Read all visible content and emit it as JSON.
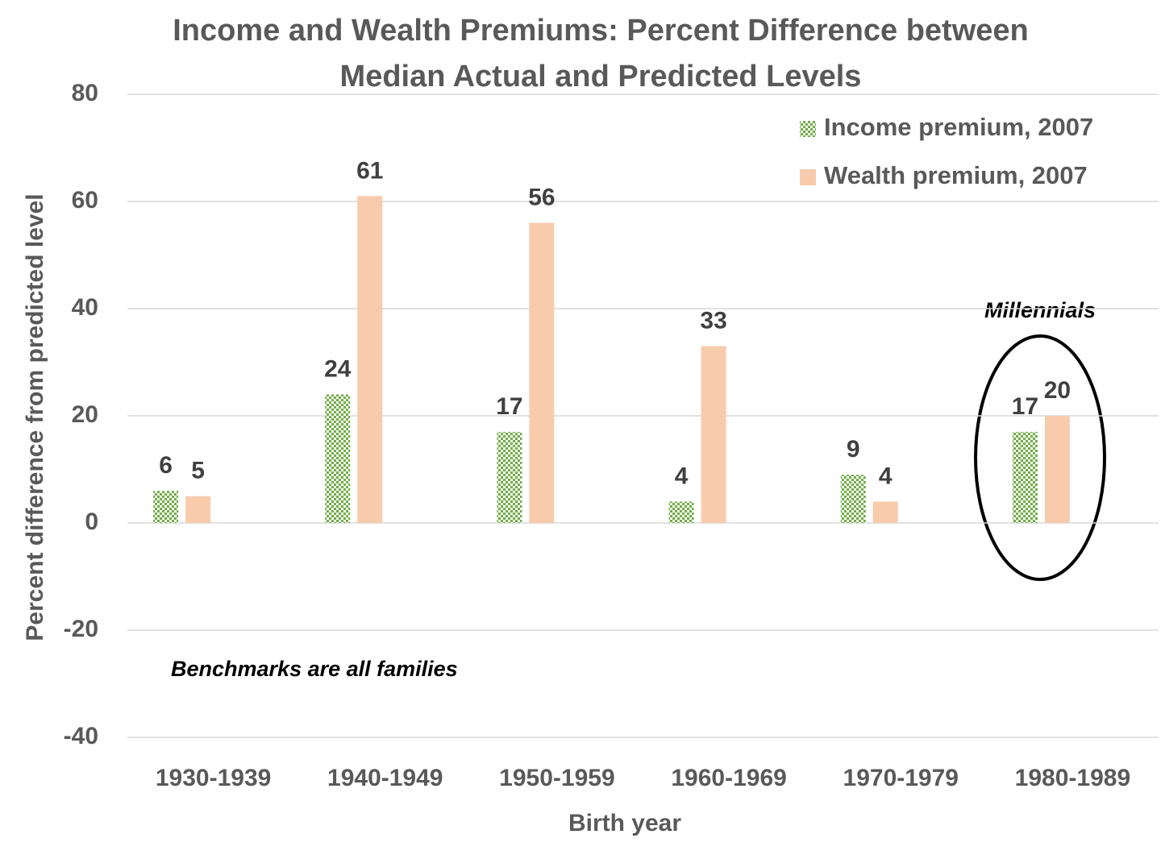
{
  "chart_data": {
    "type": "bar",
    "title": [
      "Income and Wealth Premiums: Percent Difference between",
      "Median Actual and Predicted Levels"
    ],
    "ylabel": "Percent difference from predicted level",
    "xlabel": "Birth year",
    "categories": [
      "1930-1939",
      "1940-1949",
      "1950-1959",
      "1960-1969",
      "1970-1979",
      "1980-1989"
    ],
    "series": [
      {
        "name": "Income premium, 2007",
        "color": "#70ad47",
        "values": [
          6,
          24,
          17,
          4,
          9,
          17
        ]
      },
      {
        "name": "Wealth premium, 2007",
        "color": "#f8cbad",
        "values": [
          5,
          61,
          56,
          33,
          4,
          20
        ]
      }
    ],
    "ylim": [
      -40,
      80
    ],
    "yticks": [
      -40,
      -20,
      0,
      20,
      40,
      60,
      80
    ],
    "grid": true,
    "legend": "upper right",
    "annotations": [
      "Millennials",
      "Benchmarks are all families"
    ]
  }
}
